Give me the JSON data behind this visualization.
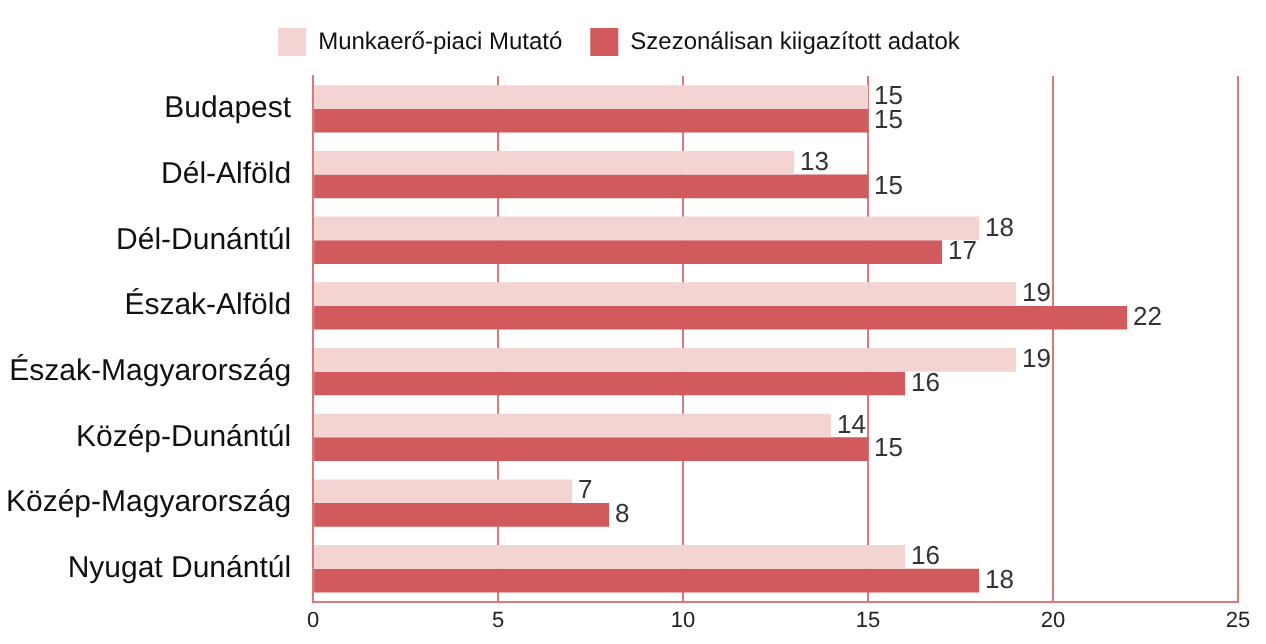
{
  "chart_data": {
    "type": "bar",
    "orientation": "horizontal",
    "categories": [
      "Budapest",
      "Dél-Alföld",
      "Dél-Dunántúl",
      "Észak-Alföld",
      "Észak-Magyarország",
      "Közép-Dunántúl",
      "Közép-Magyarország",
      "Nyugat Dunántúl"
    ],
    "series": [
      {
        "name": "Munkaerő-piaci Mutató",
        "color": "#f4d4d2",
        "values": [
          15,
          13,
          18,
          19,
          19,
          14,
          7,
          16
        ]
      },
      {
        "name": "Szezonálisan kiigazított adatok",
        "color": "#d05a5c",
        "values": [
          15,
          15,
          17,
          22,
          16,
          15,
          8,
          18
        ]
      }
    ],
    "xlim": [
      0,
      25
    ],
    "xticks": [
      0,
      5,
      10,
      15,
      20,
      25
    ],
    "grid": "x",
    "legend": "top",
    "data_labels": true
  }
}
